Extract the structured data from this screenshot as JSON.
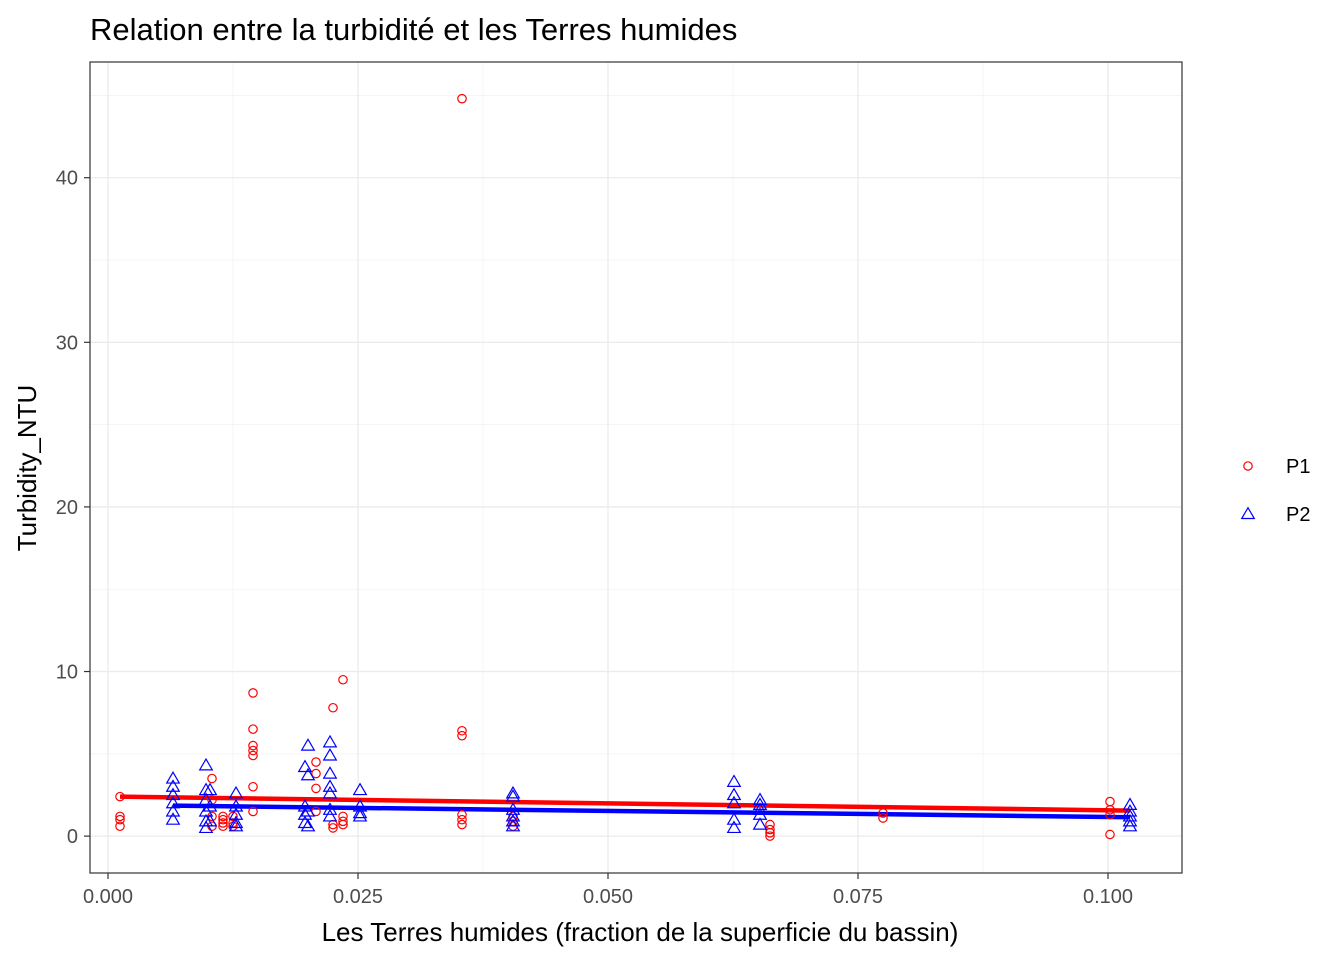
{
  "chart_data": {
    "type": "scatter",
    "title": "Relation entre la turbidité et les Terres humides",
    "xlabel": "Les Terres humides (fraction de la superficie du bassin)",
    "ylabel": "Turbidity_NTU",
    "xlim": [
      -0.0018,
      0.1074
    ],
    "ylim": [
      -2.24,
      47.03
    ],
    "x_ticks": [
      0.0,
      0.025,
      0.05,
      0.075,
      0.1
    ],
    "x_tick_labels": [
      "0.000",
      "0.025",
      "0.050",
      "0.075",
      "0.100"
    ],
    "y_ticks": [
      0,
      10,
      20,
      30,
      40
    ],
    "y_tick_labels": [
      "0",
      "10",
      "20",
      "30",
      "40"
    ],
    "grid": true,
    "legend_position": "right",
    "series": [
      {
        "name": "P1",
        "color": "#ff0000",
        "marker": "circle",
        "points": [
          [
            0.0012,
            2.4
          ],
          [
            0.0012,
            1.2
          ],
          [
            0.0012,
            1.0
          ],
          [
            0.0012,
            0.6
          ],
          [
            0.0104,
            3.5
          ],
          [
            0.0104,
            2.2
          ],
          [
            0.0104,
            1.2
          ],
          [
            0.0104,
            0.6
          ],
          [
            0.0115,
            1.2
          ],
          [
            0.0115,
            1.0
          ],
          [
            0.0115,
            0.8
          ],
          [
            0.0115,
            0.6
          ],
          [
            0.0125,
            1.2
          ],
          [
            0.0125,
            0.8
          ],
          [
            0.0125,
            0.6
          ],
          [
            0.0145,
            8.7
          ],
          [
            0.0145,
            6.5
          ],
          [
            0.0145,
            5.5
          ],
          [
            0.0145,
            5.2
          ],
          [
            0.0145,
            4.9
          ],
          [
            0.0145,
            3.0
          ],
          [
            0.0145,
            1.5
          ],
          [
            0.0208,
            4.5
          ],
          [
            0.0208,
            3.8
          ],
          [
            0.0208,
            2.9
          ],
          [
            0.0208,
            1.5
          ],
          [
            0.0225,
            7.8
          ],
          [
            0.0225,
            0.7
          ],
          [
            0.0225,
            0.5
          ],
          [
            0.0235,
            9.5
          ],
          [
            0.0235,
            1.2
          ],
          [
            0.0235,
            0.9
          ],
          [
            0.0235,
            0.7
          ],
          [
            0.0354,
            44.8
          ],
          [
            0.0354,
            6.4
          ],
          [
            0.0354,
            6.1
          ],
          [
            0.0354,
            1.3
          ],
          [
            0.0354,
            1.0
          ],
          [
            0.0354,
            0.7
          ],
          [
            0.0405,
            1.2
          ],
          [
            0.0405,
            0.9
          ],
          [
            0.0405,
            0.6
          ],
          [
            0.0662,
            0.7
          ],
          [
            0.0662,
            0.4
          ],
          [
            0.0662,
            0.2
          ],
          [
            0.0662,
            0.0
          ],
          [
            0.0775,
            1.4
          ],
          [
            0.0775,
            1.1
          ],
          [
            0.1002,
            2.1
          ],
          [
            0.1002,
            1.6
          ],
          [
            0.1002,
            1.3
          ],
          [
            0.1002,
            0.1
          ]
        ],
        "trend": [
          [
            0.0012,
            2.4
          ],
          [
            0.1022,
            1.55
          ]
        ]
      },
      {
        "name": "P2",
        "color": "#0000ff",
        "marker": "triangle",
        "points": [
          [
            0.0065,
            3.5
          ],
          [
            0.0065,
            3.0
          ],
          [
            0.0065,
            2.5
          ],
          [
            0.0065,
            2.0
          ],
          [
            0.0065,
            1.5
          ],
          [
            0.0065,
            1.0
          ],
          [
            0.0098,
            4.3
          ],
          [
            0.0098,
            2.8
          ],
          [
            0.0098,
            2.2
          ],
          [
            0.0098,
            1.5
          ],
          [
            0.0098,
            0.9
          ],
          [
            0.0098,
            0.5
          ],
          [
            0.0102,
            2.8
          ],
          [
            0.0102,
            1.8
          ],
          [
            0.0102,
            0.9
          ],
          [
            0.0128,
            2.6
          ],
          [
            0.0128,
            1.8
          ],
          [
            0.0128,
            1.3
          ],
          [
            0.0128,
            0.8
          ],
          [
            0.0128,
            0.6
          ],
          [
            0.0197,
            4.2
          ],
          [
            0.0197,
            1.8
          ],
          [
            0.0197,
            1.3
          ],
          [
            0.0197,
            0.8
          ],
          [
            0.02,
            5.5
          ],
          [
            0.02,
            3.7
          ],
          [
            0.02,
            1.5
          ],
          [
            0.02,
            0.6
          ],
          [
            0.0222,
            5.7
          ],
          [
            0.0222,
            4.9
          ],
          [
            0.0222,
            3.8
          ],
          [
            0.0222,
            3.0
          ],
          [
            0.0222,
            2.6
          ],
          [
            0.0222,
            1.6
          ],
          [
            0.0222,
            1.2
          ],
          [
            0.0252,
            2.8
          ],
          [
            0.0252,
            1.8
          ],
          [
            0.0252,
            1.4
          ],
          [
            0.0252,
            1.2
          ],
          [
            0.0405,
            2.6
          ],
          [
            0.0405,
            2.4
          ],
          [
            0.0405,
            1.6
          ],
          [
            0.0405,
            1.2
          ],
          [
            0.0405,
            0.9
          ],
          [
            0.0405,
            0.6
          ],
          [
            0.0626,
            3.3
          ],
          [
            0.0626,
            2.5
          ],
          [
            0.0626,
            2.0
          ],
          [
            0.0626,
            1.0
          ],
          [
            0.0626,
            0.5
          ],
          [
            0.0652,
            2.2
          ],
          [
            0.0652,
            1.9
          ],
          [
            0.0652,
            1.6
          ],
          [
            0.0652,
            1.3
          ],
          [
            0.0652,
            0.7
          ],
          [
            0.1022,
            1.9
          ],
          [
            0.1022,
            1.5
          ],
          [
            0.1022,
            1.2
          ],
          [
            0.1022,
            0.9
          ],
          [
            0.1022,
            0.6
          ]
        ],
        "trend": [
          [
            0.0065,
            1.85
          ],
          [
            0.1022,
            1.15
          ]
        ]
      }
    ]
  }
}
